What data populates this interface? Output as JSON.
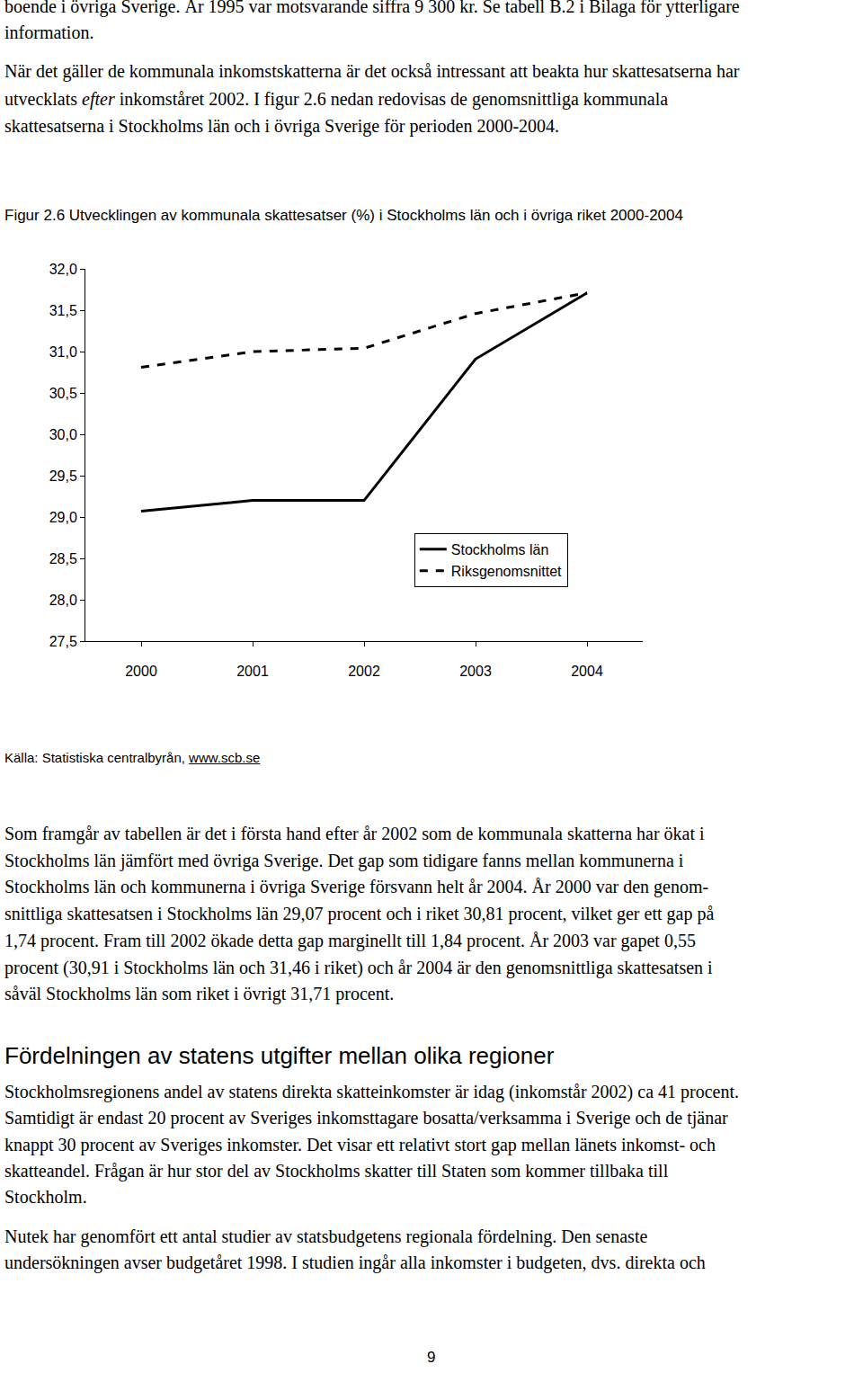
{
  "top_paragraphs": [
    [
      "boende i övriga Sverige. År 1995 var motsvarande siffra 9 300 kr. Se tabell B.2 i  Bilaga för ytterligare",
      "information."
    ],
    [
      "När det gäller de kommunala inkomstskatterna är det också intressant att beakta hur skattesatserna har",
      [
        "utvecklats ",
        {
          "text": "efter",
          "style": "italic"
        },
        " inkomståret 2002. I figur 2.6 nedan redovisas de genomsnittliga kommunala"
      ],
      "skattesatserna i Stockholms län och i övriga Sverige för perioden 2000-2004."
    ]
  ],
  "chart_data": {
    "type": "line",
    "title": "Figur 2.6 Utvecklingen av kommunala skattesatser (%) i Stockholms län och i övriga riket 2000-2004",
    "categories": [
      "2000",
      "2001",
      "2002",
      "2003",
      "2004"
    ],
    "series": [
      {
        "name": "Stockholms län",
        "color": "#000000",
        "line_style": "solid",
        "values": [
          29.07,
          29.2,
          29.2,
          30.91,
          31.71
        ]
      },
      {
        "name": "Riksgenomsnittet",
        "color": "#000000",
        "line_style": "dash",
        "values": [
          30.81,
          31.0,
          31.04,
          31.46,
          31.71
        ]
      }
    ],
    "ylim": [
      27.5,
      32.0
    ],
    "yticks": [
      {
        "value": 27.5,
        "label": "27,5"
      },
      {
        "value": 28.0,
        "label": "28,0"
      },
      {
        "value": 28.5,
        "label": "28,5"
      },
      {
        "value": 29.0,
        "label": "29,0"
      },
      {
        "value": 29.5,
        "label": "29,5"
      },
      {
        "value": 30.0,
        "label": "30,0"
      },
      {
        "value": 30.5,
        "label": "30,5"
      },
      {
        "value": 31.0,
        "label": "31,0"
      },
      {
        "value": 31.5,
        "label": "31,5"
      },
      {
        "value": 32.0,
        "label": "32,0"
      }
    ],
    "grid": false,
    "legend": "lower right"
  },
  "source": [
    "Källa: Statistiska centralbyrån, ",
    {
      "text": "www.scb.se",
      "style": "underline"
    }
  ],
  "body_paragraphs": [
    [
      "Som framgår av tabellen är det i första hand efter år 2002 som de kommunala skatterna har ökat i",
      "Stockholms län jämfört med övriga Sverige. Det gap som tidigare fanns mellan kommunerna i",
      "Stockholms län och kommunerna i övriga Sverige försvann helt år 2004. År 2000 var den genom-",
      "snittliga skattesatsen i Stockholms län 29,07 procent och i riket 30,81 procent, vilket ger ett gap på",
      "1,74 procent. Fram till 2002 ökade detta gap marginellt till 1,84 procent. År 2003 var gapet 0,55",
      "procent (30,91 i Stockholms län och 31,46 i riket) och år 2004 är den genomsnittliga skattesatsen i",
      "såväl Stockholms län som riket i övrigt 31,71 procent."
    ]
  ],
  "heading": "Fördelningen av statens utgifter mellan olika regioner",
  "section_paragraphs": [
    [
      "Stockholmsregionens andel av statens direkta skatteinkomster är idag (inkomstår 2002) ca 41 procent.",
      "Samtidigt är endast 20 procent av Sveriges inkomsttagare bosatta/verksamma i Sverige och de tjänar",
      "knappt 30 procent av Sveriges inkomster. Det visar ett relativt stort gap mellan länets inkomst- och",
      "skatteandel. Frågan är hur stor del av Stockholms skatter till Staten som kommer tillbaka till",
      "Stockholm."
    ],
    [
      "Nutek har genomfört ett antal studier av statsbudgetens regionala fördelning. Den senaste",
      "undersökningen avser budgetåret 1998. I studien ingår alla inkomster i budgeten, dvs. direkta och"
    ]
  ],
  "page_number": "9"
}
